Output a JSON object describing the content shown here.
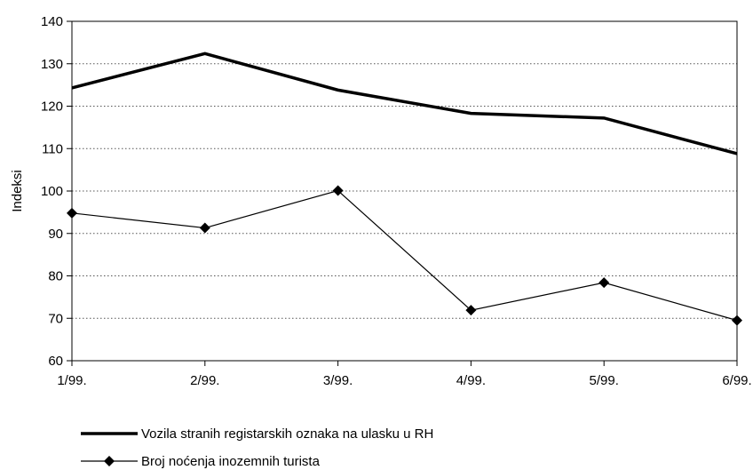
{
  "chart_data": {
    "type": "line",
    "categories": [
      "1/99.",
      "2/99.",
      "3/99.",
      "4/99.",
      "5/99.",
      "6/99."
    ],
    "ylabel": "Indeksi",
    "xlabel": "",
    "ylim": [
      60,
      140
    ],
    "yticks": [
      60,
      70,
      80,
      90,
      100,
      110,
      120,
      130,
      140
    ],
    "grid": "horizontal dotted",
    "legend_position": "bottom-left",
    "series": [
      {
        "name": "Vozila stranih registarskih oznaka na ulasku u RH",
        "values": [
          124.3,
          132.4,
          123.8,
          118.3,
          117.2,
          108.8
        ],
        "color": "#000000",
        "style": "thick-line"
      },
      {
        "name": "Broj noćenja inozemnih turista",
        "values": [
          94.8,
          91.3,
          100.1,
          71.9,
          78.4,
          69.5
        ],
        "color": "#000000",
        "style": "thin-line-diamond"
      }
    ]
  }
}
